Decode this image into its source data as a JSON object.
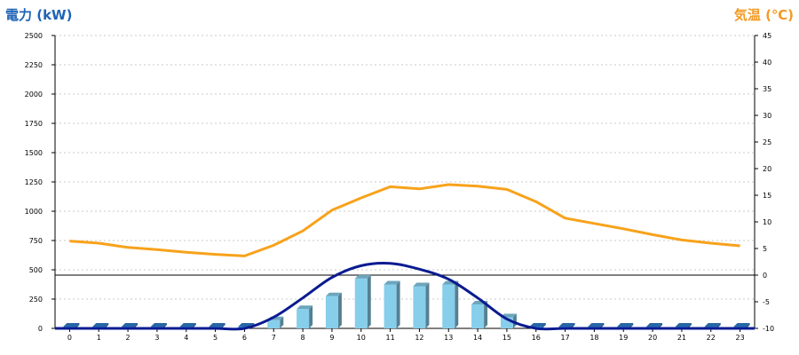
{
  "chart_data": {
    "type": "bar",
    "ylabel_left": "電力 (kW)",
    "ylabel_right": "気温 (℃)",
    "categories": [
      "0",
      "1",
      "2",
      "3",
      "4",
      "5",
      "6",
      "7",
      "8",
      "9",
      "10",
      "11",
      "12",
      "13",
      "14",
      "15",
      "16",
      "17",
      "18",
      "19",
      "20",
      "21",
      "22",
      "23"
    ],
    "ylim_left": [
      0,
      2500
    ],
    "yticks_left": [
      "0",
      "250",
      "500",
      "750",
      "1000",
      "1250",
      "1500",
      "1750",
      "2000",
      "2250",
      "2500"
    ],
    "ylim_right": [
      -10,
      45
    ],
    "yticks_right": [
      "-10",
      "-5",
      "0",
      "5",
      "10",
      "15",
      "20",
      "25",
      "30",
      "35",
      "40",
      "45"
    ],
    "grid": true,
    "series": [
      {
        "kind": "bar",
        "axis": "left",
        "values": [
          15,
          15,
          15,
          15,
          15,
          15,
          15,
          70,
          165,
          275,
          425,
          375,
          360,
          375,
          205,
          95,
          15,
          15,
          15,
          15,
          15,
          15,
          15,
          15
        ],
        "color": "#87ceeb",
        "first_last_color": "#2f7fcf"
      },
      {
        "kind": "line",
        "axis": "left",
        "values": [
          0,
          0,
          0,
          0,
          0,
          0,
          0,
          95,
          260,
          435,
          535,
          555,
          505,
          420,
          260,
          80,
          0,
          0,
          0,
          0,
          0,
          0,
          0,
          0
        ],
        "color": "#0a1b91"
      },
      {
        "kind": "line",
        "axis": "right",
        "values": [
          6.4,
          6.0,
          5.2,
          4.8,
          4.3,
          3.9,
          3.6,
          5.6,
          8.3,
          12.2,
          14.5,
          16.6,
          16.2,
          17.0,
          16.7,
          16.1,
          13.8,
          10.7,
          9.7,
          8.7,
          7.6,
          6.6,
          6.0,
          5.5
        ],
        "color": "#f7a21b"
      }
    ]
  }
}
